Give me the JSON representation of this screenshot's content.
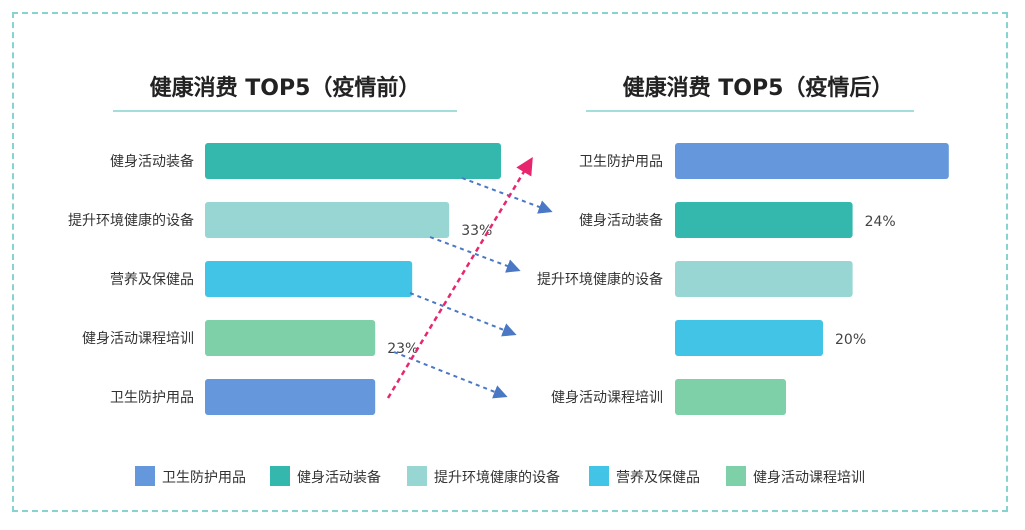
{
  "chart_data": [
    {
      "type": "bar",
      "title": "健康消费 TOP5（疫情前）",
      "categories": [
        "健身活动装备",
        "提升环境健康的设备",
        "营养及保健品",
        "健身活动课程培训",
        "卫生防护用品"
      ],
      "values": [
        40,
        33,
        28,
        23,
        23
      ],
      "value_labels": [
        "",
        "33%",
        "",
        "23%",
        ""
      ],
      "colors": [
        "#34b8ad",
        "#97d6d3",
        "#41c4e6",
        "#7dd0a8",
        "#6497dc"
      ]
    },
    {
      "type": "bar",
      "title": "健康消费 TOP5（疫情后）",
      "categories": [
        "卫生防护用品",
        "健身活动装备",
        "提升环境健康的设备",
        "",
        "健身活动课程培训"
      ],
      "values": [
        37,
        24,
        24,
        20,
        15
      ],
      "value_labels": [
        "",
        "24%",
        "",
        "20%",
        ""
      ],
      "colors": [
        "#6497dc",
        "#34b8ad",
        "#97d6d3",
        "#41c4e6",
        "#7dd0a8"
      ]
    }
  ],
  "legend": [
    {
      "label": "卫生防护用品",
      "color": "#6497dc"
    },
    {
      "label": "健身活动装备",
      "color": "#34b8ad"
    },
    {
      "label": "提升环境健康的设备",
      "color": "#97d6d3"
    },
    {
      "label": "营养及保健品",
      "color": "#41c4e6"
    },
    {
      "label": "健身活动课程培训",
      "color": "#7dd0a8"
    }
  ],
  "colors": {
    "frame_border": "#86d3cf",
    "title_underline": "#86d3cf",
    "arrow_blue": "#4a78c4",
    "arrow_pink": "#e8266e"
  }
}
